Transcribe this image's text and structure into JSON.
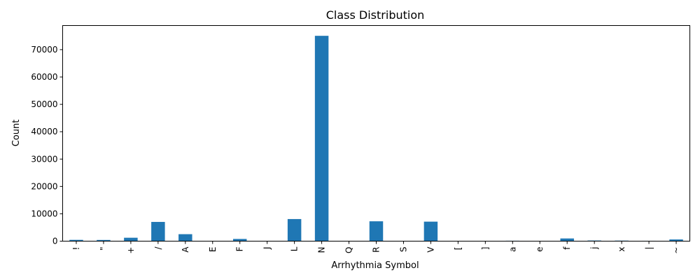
{
  "chart_data": {
    "type": "bar",
    "title": "Class Distribution",
    "xlabel": "Arrhythmia Symbol",
    "ylabel": "Count",
    "categories": [
      "!",
      "\"",
      "+",
      "/",
      "A",
      "E",
      "F",
      "J",
      "L",
      "N",
      "Q",
      "R",
      "S",
      "V",
      "[",
      "]",
      "a",
      "e",
      "f",
      "j",
      "x",
      "|",
      "~"
    ],
    "values": [
      472,
      437,
      1246,
      7028,
      2546,
      106,
      803,
      83,
      8075,
      75052,
      33,
      7259,
      2,
      7130,
      6,
      6,
      150,
      16,
      982,
      229,
      193,
      132,
      616
    ],
    "ylim": [
      0,
      78806
    ],
    "yticks": [
      0,
      10000,
      20000,
      30000,
      40000,
      50000,
      60000,
      70000
    ],
    "bar_color": "#1f77b4",
    "grid": false,
    "legend": "none"
  }
}
